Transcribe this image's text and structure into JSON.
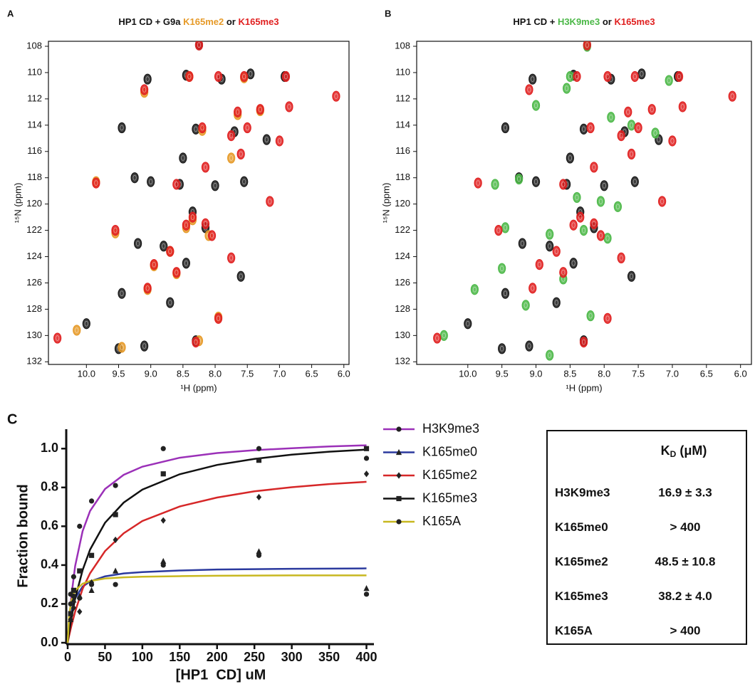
{
  "chart_data": [
    {
      "type": "scatter",
      "panel_label": "A",
      "title_prefix": "HP1 CD + G9a",
      "title_joiner": "or",
      "x_label": "¹H (ppm)",
      "y_label": "¹⁵N (ppm)",
      "xlim": [
        10.59,
        5.92
      ],
      "ylim": [
        132.2,
        107.62
      ],
      "xticks": [
        {
          "value": 10,
          "label": "10.0"
        },
        9.5,
        {
          "value": 9,
          "label": "9.0"
        },
        8.5,
        {
          "value": 8,
          "label": "8.0"
        },
        7.5,
        {
          "value": 7,
          "label": "7.0"
        },
        6.5,
        {
          "value": 6,
          "label": "6.0"
        }
      ],
      "yticks": [
        108,
        110,
        112,
        114,
        116,
        118,
        120,
        122,
        124,
        126,
        128,
        130,
        132
      ],
      "series": [
        {
          "color": "#1a1a1a",
          "x": [
            8.25,
            9.05,
            8.45,
            7.9,
            7.45,
            6.92,
            9.45,
            8.3,
            7.7,
            7.2,
            8.5,
            9.25,
            9.0,
            8.55,
            8.0,
            7.55,
            8.35,
            8.15,
            9.2,
            8.8,
            8.45,
            7.6,
            9.45,
            8.7,
            10.0,
            9.1,
            9.5,
            8.3
          ],
          "values": [
            107.9,
            110.5,
            110.2,
            110.5,
            110.1,
            110.3,
            114.2,
            114.3,
            114.5,
            115.1,
            116.5,
            118.0,
            118.3,
            118.5,
            118.6,
            118.3,
            120.6,
            121.8,
            123.0,
            123.2,
            124.5,
            125.5,
            126.8,
            127.5,
            129.1,
            130.8,
            131.0,
            130.4
          ]
        },
        {
          "name": "K165me2",
          "color": "#e69a28",
          "x": [
            8.4,
            7.55,
            9.1,
            7.65,
            7.3,
            8.2,
            7.75,
            9.85,
            8.35,
            8.45,
            8.1,
            9.55,
            8.7,
            8.95,
            8.6,
            9.05,
            7.95,
            10.15,
            9.45,
            8.25
          ],
          "values": [
            110.3,
            110.4,
            111.5,
            113.2,
            112.9,
            114.4,
            116.5,
            118.3,
            121.2,
            121.8,
            122.4,
            122.2,
            123.6,
            124.7,
            125.3,
            126.5,
            128.6,
            129.6,
            130.9,
            130.4
          ]
        },
        {
          "name": "K165me3",
          "color": "#e02020",
          "x": [
            8.25,
            8.4,
            7.95,
            7.55,
            6.9,
            9.1,
            6.12,
            7.65,
            7.3,
            6.85,
            8.2,
            7.5,
            7.75,
            7.0,
            7.6,
            8.15,
            9.85,
            8.6,
            7.15,
            8.35,
            8.45,
            8.15,
            8.05,
            9.55,
            8.7,
            7.75,
            8.95,
            8.6,
            9.05,
            7.95,
            10.45,
            8.3
          ],
          "values": [
            107.9,
            110.3,
            110.3,
            110.3,
            110.3,
            111.3,
            111.8,
            113.0,
            112.8,
            112.6,
            114.2,
            114.2,
            114.8,
            115.2,
            116.2,
            117.2,
            118.4,
            118.5,
            119.8,
            121.0,
            121.6,
            121.5,
            122.4,
            122.0,
            123.6,
            124.1,
            124.6,
            125.2,
            126.4,
            128.7,
            130.2,
            130.5
          ]
        }
      ]
    },
    {
      "type": "scatter",
      "panel_label": "B",
      "title_prefix": "HP1 CD +",
      "title_joiner": "or",
      "x_label": "¹H (ppm)",
      "y_label": "¹⁵N (ppm)",
      "xlim": [
        10.75,
        5.84
      ],
      "ylim": [
        132.2,
        107.62
      ],
      "xticks": [
        {
          "value": 10,
          "label": "10.0"
        },
        9.5,
        {
          "value": 9,
          "label": "9.0"
        },
        8.5,
        {
          "value": 8,
          "label": "8.0"
        },
        7.5,
        {
          "value": 7,
          "label": "7.0"
        },
        6.5,
        {
          "value": 6,
          "label": "6.0"
        }
      ],
      "yticks": [
        108,
        110,
        112,
        114,
        116,
        118,
        120,
        122,
        124,
        126,
        128,
        130,
        132
      ],
      "series": [
        {
          "color": "#1a1a1a",
          "x": [
            8.25,
            9.05,
            8.45,
            7.9,
            7.45,
            6.92,
            9.45,
            8.3,
            7.7,
            7.2,
            8.5,
            9.25,
            9.0,
            8.55,
            8.0,
            7.55,
            8.35,
            8.15,
            9.2,
            8.8,
            8.45,
            7.6,
            9.45,
            8.7,
            10.0,
            9.1,
            9.5,
            8.3
          ],
          "values": [
            107.9,
            110.5,
            110.2,
            110.5,
            110.1,
            110.3,
            114.2,
            114.3,
            114.5,
            115.1,
            116.5,
            118.0,
            118.3,
            118.5,
            118.6,
            118.3,
            120.6,
            121.8,
            123.0,
            123.2,
            124.5,
            125.5,
            126.8,
            127.5,
            129.1,
            130.8,
            131.0,
            130.4
          ]
        },
        {
          "name": "H3K9me3",
          "color": "#4cb848",
          "x": [
            8.25,
            8.5,
            7.05,
            8.55,
            9.0,
            7.9,
            7.6,
            7.25,
            9.6,
            9.25,
            8.4,
            8.05,
            7.8,
            9.45,
            8.8,
            8.3,
            7.95,
            9.5,
            8.6,
            9.9,
            9.15,
            8.2,
            10.35,
            8.8
          ],
          "values": [
            108.0,
            110.3,
            110.6,
            111.2,
            112.5,
            113.4,
            114.0,
            114.6,
            118.5,
            118.1,
            119.5,
            119.8,
            120.2,
            121.8,
            122.3,
            122.0,
            122.6,
            124.9,
            125.7,
            126.5,
            127.7,
            128.5,
            130.0,
            131.5
          ]
        },
        {
          "name": "K165me3",
          "color": "#e02020",
          "x": [
            8.25,
            8.4,
            7.95,
            7.55,
            6.9,
            9.1,
            6.12,
            7.65,
            7.3,
            6.85,
            8.2,
            7.5,
            7.75,
            7.0,
            7.6,
            8.15,
            9.85,
            8.6,
            7.15,
            8.35,
            8.45,
            8.15,
            8.05,
            9.55,
            8.7,
            7.75,
            8.95,
            8.6,
            9.05,
            7.95,
            10.45,
            8.3
          ],
          "values": [
            107.9,
            110.3,
            110.3,
            110.3,
            110.3,
            111.3,
            111.8,
            113.0,
            112.8,
            112.6,
            114.2,
            114.2,
            114.8,
            115.2,
            116.2,
            117.2,
            118.4,
            118.5,
            119.8,
            121.0,
            121.6,
            121.5,
            122.4,
            122.0,
            123.6,
            124.1,
            124.6,
            125.2,
            126.4,
            128.7,
            130.2,
            130.5
          ]
        }
      ]
    },
    {
      "type": "line",
      "panel_label": "C",
      "x_label": "[HP1  CD] uM",
      "y_label": "Fraction bound",
      "xlim": [
        0,
        410
      ],
      "ylim": [
        0,
        1.1
      ],
      "xticks": [
        0,
        50,
        100,
        150,
        200,
        250,
        300,
        350,
        400
      ],
      "yticks": [
        {
          "value": 0,
          "label": "0.0"
        },
        0.2,
        0.4,
        0.6,
        0.8,
        {
          "value": 1,
          "label": "1.0"
        }
      ],
      "marker_color": "#222222",
      "x": [
        4,
        8,
        16,
        32,
        64,
        128,
        256,
        400
      ],
      "fit_x": [
        0,
        2,
        5,
        10,
        20,
        30,
        50,
        75,
        100,
        150,
        200,
        250,
        300,
        350,
        400
      ],
      "series": [
        {
          "name": "H3K9me3",
          "color": "#9b30b8",
          "marker": "circle",
          "values": [
            0.25,
            0.34,
            0.6,
            0.73,
            0.81,
            1.0,
            1.0,
            0.95
          ],
          "fit": [
            0,
            0.112,
            0.242,
            0.395,
            0.575,
            0.679,
            0.792,
            0.865,
            0.907,
            0.953,
            0.977,
            0.992,
            1.002,
            1.011,
            1.017
          ]
        },
        {
          "name": "K165me0",
          "color": "#2b3a9e",
          "marker": "triangle",
          "values": [
            0.12,
            0.22,
            0.24,
            0.27,
            0.37,
            0.42,
            0.47,
            0.28
          ],
          "fit": [
            0,
            0.087,
            0.163,
            0.229,
            0.289,
            0.316,
            0.342,
            0.357,
            0.364,
            0.372,
            0.377,
            0.379,
            0.381,
            0.382,
            0.383
          ]
        },
        {
          "name": "K165me2",
          "color": "#d62728",
          "marker": "diamond",
          "values": [
            0.12,
            0.18,
            0.16,
            0.31,
            0.53,
            0.63,
            0.75,
            0.87
          ],
          "fit": [
            0,
            0.037,
            0.087,
            0.16,
            0.278,
            0.358,
            0.472,
            0.564,
            0.627,
            0.702,
            0.748,
            0.78,
            0.801,
            0.817,
            0.829
          ]
        },
        {
          "name": "K165me3",
          "color": "#111111",
          "marker": "square",
          "values": [
            0.15,
            0.27,
            0.37,
            0.45,
            0.66,
            0.87,
            0.94,
            1.0
          ],
          "fit": [
            0,
            0.055,
            0.126,
            0.227,
            0.374,
            0.48,
            0.618,
            0.722,
            0.789,
            0.868,
            0.916,
            0.947,
            0.969,
            0.984,
            0.995
          ]
        },
        {
          "name": "K165A",
          "color": "#c8b820",
          "marker": "circle",
          "values": [
            0.2,
            0.24,
            0.23,
            0.3,
            0.3,
            0.4,
            0.45,
            0.25
          ],
          "fit": [
            0,
            0.14,
            0.219,
            0.269,
            0.304,
            0.318,
            0.331,
            0.337,
            0.34,
            0.343,
            0.345,
            0.346,
            0.347,
            0.347,
            0.347
          ]
        }
      ]
    }
  ],
  "table": {
    "header": {
      "symbol": "K",
      "subscript": "D",
      "unit": "(μM)"
    },
    "rows": [
      [
        "H3K9me3",
        "16.9 ± 3.3"
      ],
      [
        "K165me0",
        "> 400"
      ],
      [
        "K165me2",
        "48.5 ± 10.8"
      ],
      [
        "K165me3",
        "38.2 ± 4.0"
      ],
      [
        "K165A",
        "> 400"
      ]
    ]
  }
}
